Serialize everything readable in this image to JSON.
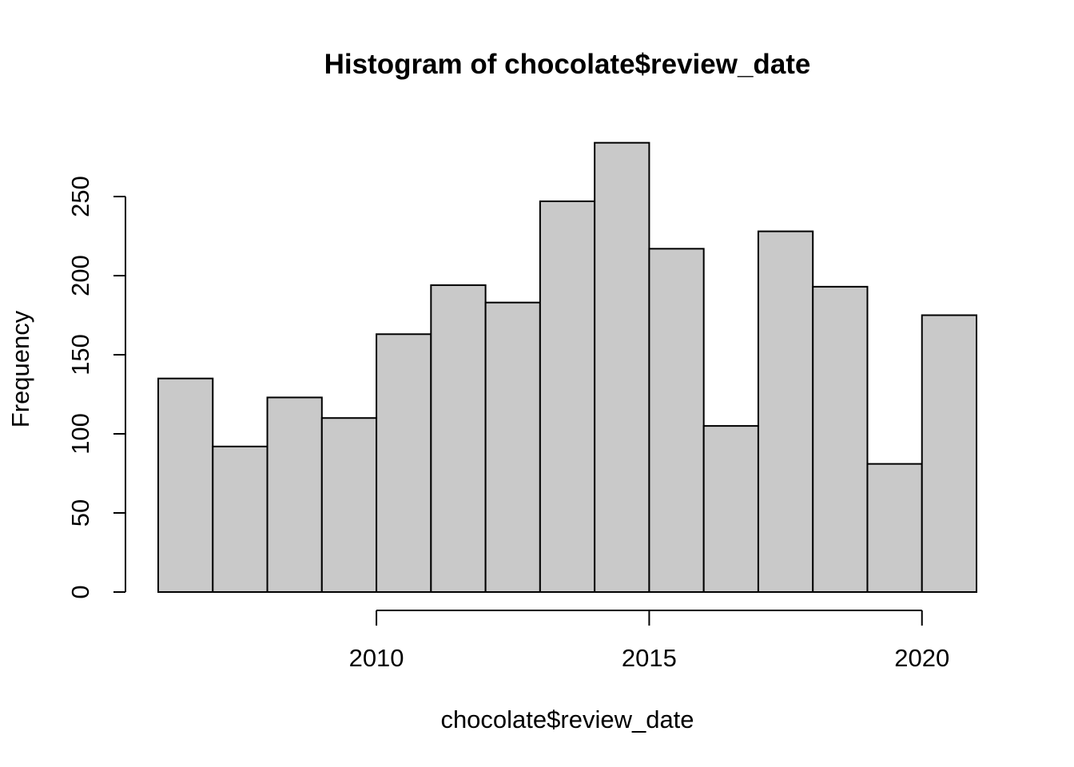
{
  "chart_data": {
    "type": "bar",
    "title": "Histogram of chocolate$review_date",
    "xlabel": "chocolate$review_date",
    "ylabel": "Frequency",
    "bins": [
      {
        "start": 2006,
        "end": 2007,
        "count": 135
      },
      {
        "start": 2007,
        "end": 2008,
        "count": 92
      },
      {
        "start": 2008,
        "end": 2009,
        "count": 123
      },
      {
        "start": 2009,
        "end": 2010,
        "count": 110
      },
      {
        "start": 2010,
        "end": 2011,
        "count": 163
      },
      {
        "start": 2011,
        "end": 2012,
        "count": 194
      },
      {
        "start": 2012,
        "end": 2013,
        "count": 183
      },
      {
        "start": 2013,
        "end": 2014,
        "count": 247
      },
      {
        "start": 2014,
        "end": 2015,
        "count": 284
      },
      {
        "start": 2015,
        "end": 2016,
        "count": 217
      },
      {
        "start": 2016,
        "end": 2017,
        "count": 105
      },
      {
        "start": 2017,
        "end": 2018,
        "count": 228
      },
      {
        "start": 2018,
        "end": 2019,
        "count": 193
      },
      {
        "start": 2019,
        "end": 2020,
        "count": 81
      },
      {
        "start": 2020,
        "end": 2021,
        "count": 175
      }
    ],
    "xlim": [
      2006,
      2021
    ],
    "ylim": [
      0,
      284
    ],
    "x_ticks": [
      2010,
      2015,
      2020
    ],
    "y_ticks": [
      0,
      50,
      100,
      150,
      200,
      250
    ],
    "bar_color": "#c9c9c9",
    "grid": false
  }
}
